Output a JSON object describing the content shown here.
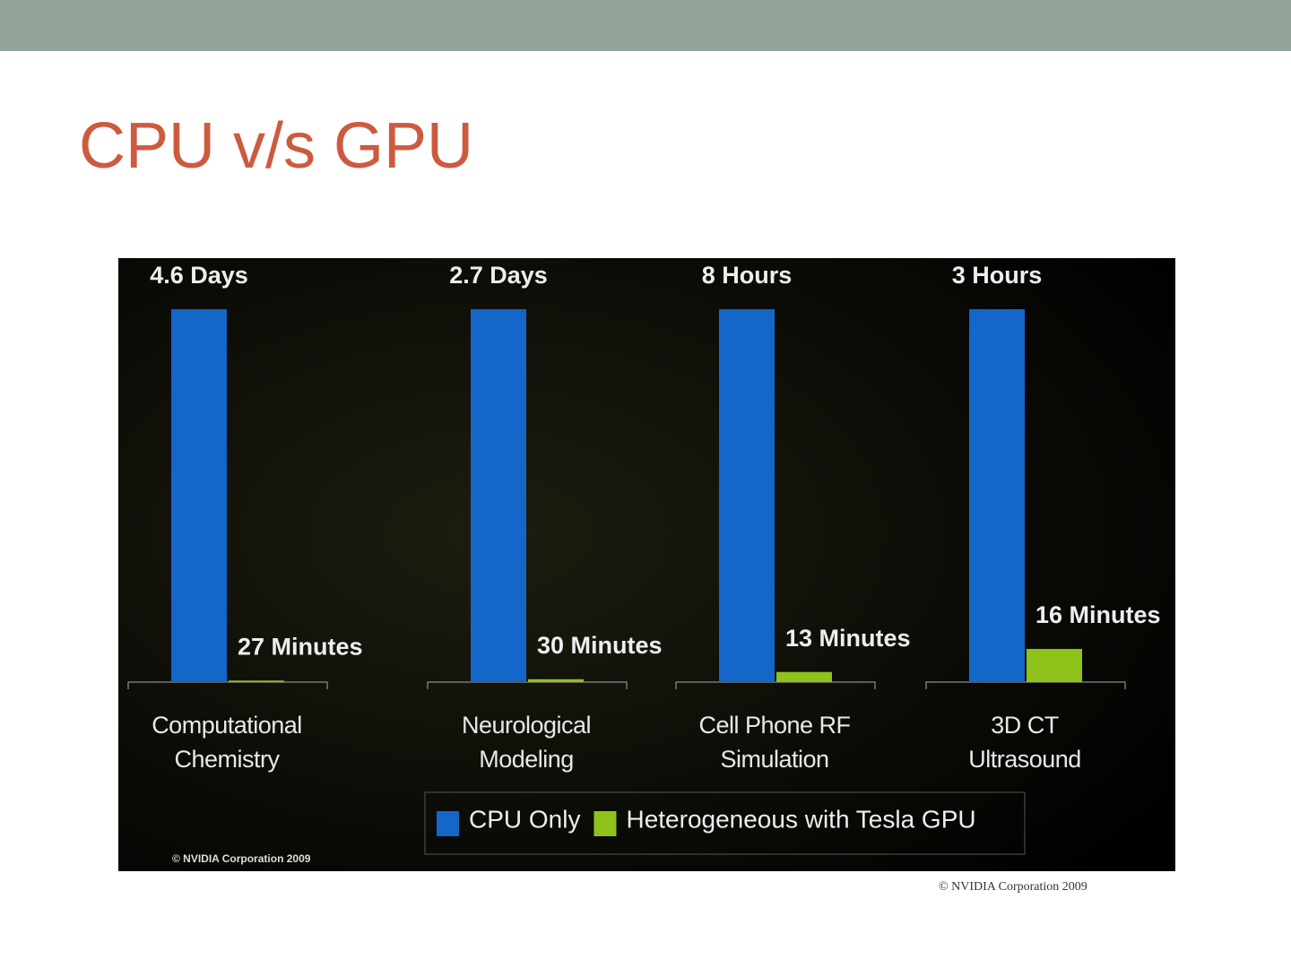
{
  "title": "CPU v/s GPU",
  "chart_data": {
    "type": "bar",
    "categories": [
      "Computational Chemistry",
      "Neurological Modeling",
      "Cell Phone RF Simulation",
      "3D CT Ultrasound"
    ],
    "series": [
      {
        "name": "CPU Only",
        "color": "#1466c8",
        "values": [
          6624,
          3888,
          480,
          180
        ],
        "value_labels": [
          "4.6 Days",
          "2.7 Days",
          "8 Hours",
          "3 Hours"
        ]
      },
      {
        "name": "Heterogeneous with Tesla GPU",
        "color": "#8fc21a",
        "values": [
          27,
          30,
          13,
          16
        ],
        "value_labels": [
          "27 Minutes",
          "30 Minutes",
          "13 Minutes",
          "16 Minutes"
        ]
      }
    ],
    "watermark": "© NVIDIA Corporation 2009"
  },
  "caption": "© NVIDIA Corporation 2009"
}
